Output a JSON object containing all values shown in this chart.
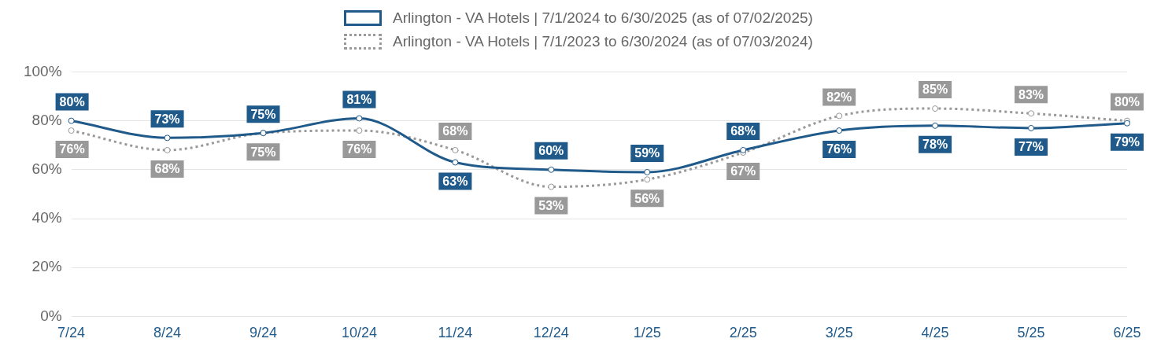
{
  "chart_data": {
    "type": "line",
    "categories": [
      "7/24",
      "8/24",
      "9/24",
      "10/24",
      "11/24",
      "12/24",
      "1/25",
      "2/25",
      "3/25",
      "4/25",
      "5/25",
      "6/25"
    ],
    "series": [
      {
        "name": "Arlington - VA Hotels | 7/1/2024 to 6/30/2025 (as of 07/02/2025)",
        "color": "#1f5a8a",
        "line_style": "solid",
        "values": [
          80,
          73,
          75,
          81,
          63,
          60,
          59,
          68,
          76,
          78,
          77,
          79
        ],
        "value_labels": [
          "80%",
          "73%",
          "75%",
          "81%",
          "63%",
          "60%",
          "59%",
          "68%",
          "76%",
          "78%",
          "77%",
          "79%"
        ]
      },
      {
        "name": "Arlington - VA Hotels | 7/1/2023 to 6/30/2024 (as of 07/03/2024)",
        "color": "#999999",
        "line_style": "dotted",
        "values": [
          76,
          68,
          75,
          76,
          68,
          53,
          56,
          67,
          82,
          85,
          83,
          80
        ],
        "value_labels": [
          "76%",
          "68%",
          "75%",
          "76%",
          "68%",
          "53%",
          "56%",
          "67%",
          "82%",
          "85%",
          "83%",
          "80%"
        ]
      }
    ],
    "ylim": [
      0,
      100
    ],
    "yticks": [
      {
        "value": 0,
        "label": "0%"
      },
      {
        "value": 20,
        "label": "20%"
      },
      {
        "value": 40,
        "label": "40%"
      },
      {
        "value": 60,
        "label": "60%"
      },
      {
        "value": 80,
        "label": "80%"
      },
      {
        "value": 100,
        "label": "100%"
      }
    ],
    "grid": "y",
    "legend": "top",
    "marker": "circle"
  }
}
